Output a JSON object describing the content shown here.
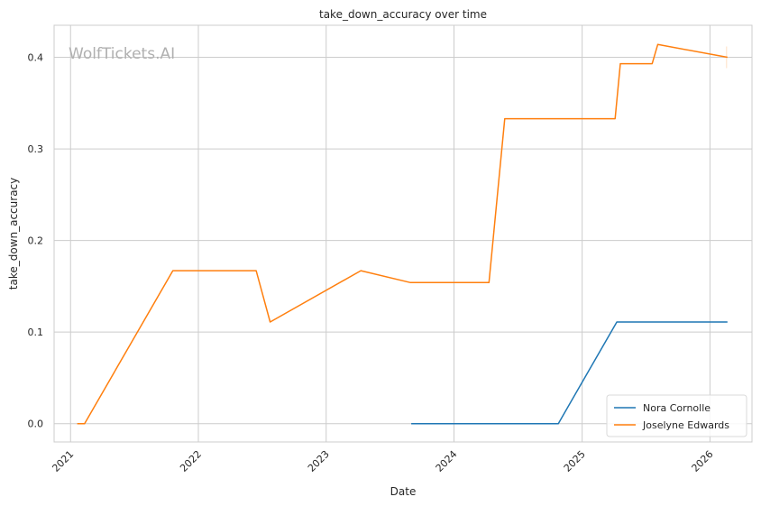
{
  "watermark": "WolfTickets.AI",
  "chart_data": {
    "type": "line",
    "title": "take_down_accuracy over time",
    "xlabel": "Date",
    "ylabel": "take_down_accuracy",
    "xlim": [
      "2020-11-15",
      "2026-05-01"
    ],
    "ylim": [
      -0.02,
      0.435
    ],
    "x_ticks": [
      {
        "value": "2021-01-01",
        "label": "2021"
      },
      {
        "value": "2022-01-01",
        "label": "2022"
      },
      {
        "value": "2023-01-01",
        "label": "2023"
      },
      {
        "value": "2024-01-01",
        "label": "2024"
      },
      {
        "value": "2025-01-01",
        "label": "2025"
      },
      {
        "value": "2026-01-01",
        "label": "2026"
      }
    ],
    "y_ticks": [
      {
        "value": 0.0,
        "label": "0.0"
      },
      {
        "value": 0.1,
        "label": "0.1"
      },
      {
        "value": 0.2,
        "label": "0.2"
      },
      {
        "value": 0.3,
        "label": "0.3"
      },
      {
        "value": 0.4,
        "label": "0.4"
      }
    ],
    "grid": true,
    "legend_position": "bottom-right",
    "series": [
      {
        "name": "Nora Cornolle",
        "color": "#1f77b4",
        "points": [
          [
            "2023-09-01",
            0.0
          ],
          [
            "2024-10-25",
            0.0
          ],
          [
            "2025-04-10",
            0.111
          ],
          [
            "2026-02-20",
            0.111
          ]
        ]
      },
      {
        "name": "Joselyne Edwards",
        "color": "#ff7f0e",
        "points": [
          [
            "2021-01-20",
            0.0
          ],
          [
            "2021-02-10",
            0.0
          ],
          [
            "2021-10-20",
            0.167
          ],
          [
            "2022-06-15",
            0.167
          ],
          [
            "2022-07-25",
            0.111
          ],
          [
            "2023-04-10",
            0.167
          ],
          [
            "2023-08-30",
            0.154
          ],
          [
            "2024-04-10",
            0.154
          ],
          [
            "2024-05-25",
            0.333
          ],
          [
            "2025-04-05",
            0.333
          ],
          [
            "2025-04-20",
            0.393
          ],
          [
            "2025-07-20",
            0.393
          ],
          [
            "2025-08-05",
            0.414
          ],
          [
            "2026-02-20",
            0.4
          ]
        ]
      }
    ]
  }
}
